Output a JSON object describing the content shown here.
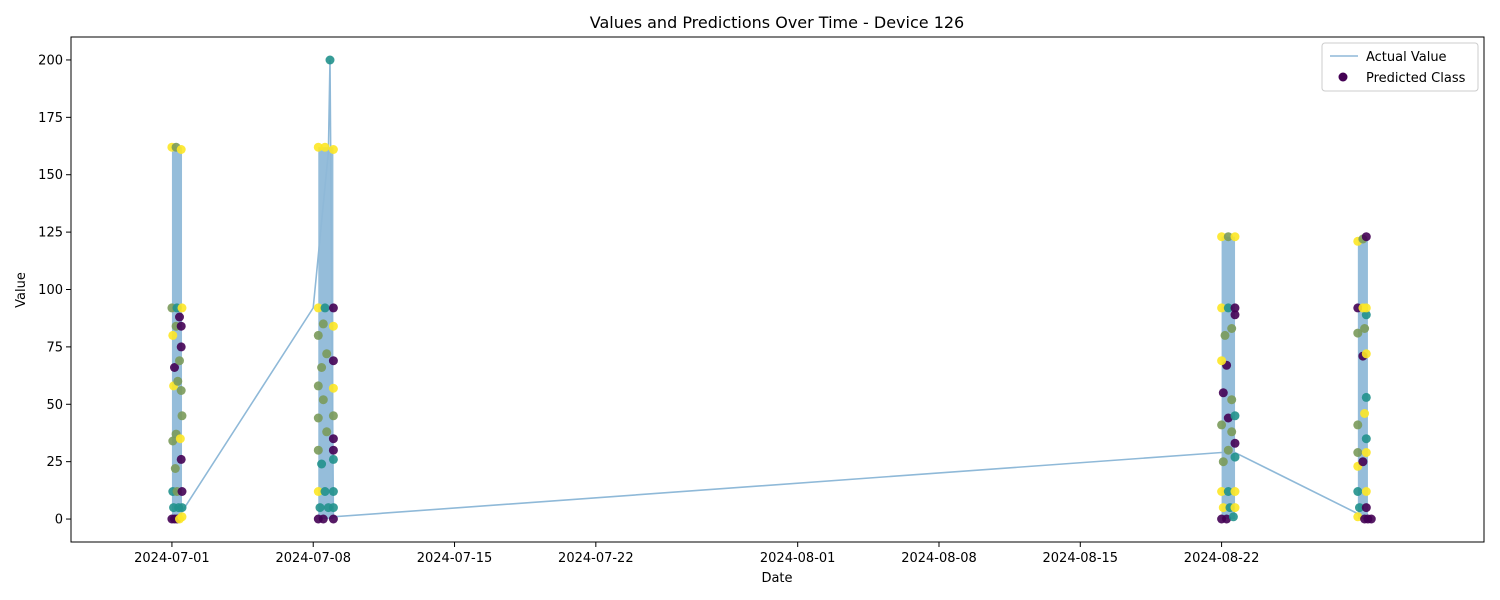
{
  "chart_data": {
    "type": "scatter",
    "title": "Values and Predictions Over Time - Device 126",
    "xlabel": "Date",
    "ylabel": "Value",
    "xlim": [
      "2024-06-26",
      "2024-09-04"
    ],
    "ylim": [
      -10,
      210
    ],
    "x_ticks": [
      "2024-07-01",
      "2024-07-08",
      "2024-07-15",
      "2024-07-22",
      "2024-08-01",
      "2024-08-08",
      "2024-08-15",
      "2024-08-22"
    ],
    "y_ticks": [
      0,
      25,
      50,
      75,
      100,
      125,
      150,
      175,
      200
    ],
    "grid": false,
    "legend_position": "top-right",
    "legend": [
      {
        "label": "Actual Value",
        "kind": "line",
        "color": "#8fb9d8"
      },
      {
        "label": "Predicted Class",
        "kind": "marker",
        "color": "#440154"
      }
    ],
    "class_colors": [
      "#440154",
      "#7a9a5a",
      "#21918c",
      "#fde725"
    ],
    "bands": [
      {
        "start": "2024-07-01",
        "end": "2024-07-01T12:00",
        "min": 0,
        "max": 162
      },
      {
        "start": "2024-07-08T06:00",
        "end": "2024-07-09",
        "min": 0,
        "max": 162
      },
      {
        "start": "2024-08-22",
        "end": "2024-08-22T16:00",
        "min": 0,
        "max": 123
      },
      {
        "start": "2024-08-28T18:00",
        "end": "2024-08-29T06:00",
        "min": 0,
        "max": 122
      }
    ],
    "series": [
      {
        "name": "Actual Value",
        "type": "line",
        "x": [
          "2024-07-01T08:00",
          "2024-07-08T00:00",
          "2024-07-08T18:00",
          "2024-07-08T20:00",
          "2024-07-09T00:00",
          "2024-08-22T00:00",
          "2024-08-22T16:00",
          "2024-08-28T20:00"
        ],
        "y": [
          1,
          92,
          160,
          200,
          1,
          29,
          29,
          2
        ]
      },
      {
        "name": "Predicted Class",
        "type": "scatter",
        "points": [
          {
            "x": "2024-07-01T00:00",
            "y": 0,
            "c": 0
          },
          {
            "x": "2024-07-01T03:00",
            "y": 0,
            "c": 0
          },
          {
            "x": "2024-07-01T06:00",
            "y": 0,
            "c": 0
          },
          {
            "x": "2024-07-01T09:00",
            "y": 0,
            "c": 3
          },
          {
            "x": "2024-07-01T12:00",
            "y": 1,
            "c": 3
          },
          {
            "x": "2024-07-01T02:00",
            "y": 5,
            "c": 2
          },
          {
            "x": "2024-07-01T08:00",
            "y": 5,
            "c": 2
          },
          {
            "x": "2024-07-01T12:00",
            "y": 5,
            "c": 2
          },
          {
            "x": "2024-07-01T01:00",
            "y": 12,
            "c": 2
          },
          {
            "x": "2024-07-01T06:00",
            "y": 12,
            "c": 1
          },
          {
            "x": "2024-07-01T12:00",
            "y": 12,
            "c": 0
          },
          {
            "x": "2024-07-01T11:00",
            "y": 26,
            "c": 0
          },
          {
            "x": "2024-07-01T01:00",
            "y": 34,
            "c": 1
          },
          {
            "x": "2024-07-01T05:00",
            "y": 37,
            "c": 1
          },
          {
            "x": "2024-07-01T10:00",
            "y": 35,
            "c": 3
          },
          {
            "x": "2024-07-01T04:00",
            "y": 22,
            "c": 1
          },
          {
            "x": "2024-07-01T12:00",
            "y": 45,
            "c": 1
          },
          {
            "x": "2024-07-01T02:00",
            "y": 58,
            "c": 3
          },
          {
            "x": "2024-07-01T07:00",
            "y": 60,
            "c": 1
          },
          {
            "x": "2024-07-01T11:00",
            "y": 56,
            "c": 1
          },
          {
            "x": "2024-07-01T03:00",
            "y": 66,
            "c": 0
          },
          {
            "x": "2024-07-01T09:00",
            "y": 69,
            "c": 1
          },
          {
            "x": "2024-07-01T11:00",
            "y": 75,
            "c": 0
          },
          {
            "x": "2024-07-01T01:00",
            "y": 80,
            "c": 3
          },
          {
            "x": "2024-07-01T05:00",
            "y": 84,
            "c": 1
          },
          {
            "x": "2024-07-01T11:00",
            "y": 84,
            "c": 0
          },
          {
            "x": "2024-07-01T09:00",
            "y": 88,
            "c": 0
          },
          {
            "x": "2024-07-01T00:00",
            "y": 92,
            "c": 1
          },
          {
            "x": "2024-07-01T06:00",
            "y": 92,
            "c": 2
          },
          {
            "x": "2024-07-01T12:00",
            "y": 92,
            "c": 3
          },
          {
            "x": "2024-07-01T00:00",
            "y": 162,
            "c": 3
          },
          {
            "x": "2024-07-01T05:00",
            "y": 162,
            "c": 1
          },
          {
            "x": "2024-07-01T11:00",
            "y": 161,
            "c": 3
          },
          {
            "x": "2024-07-08T06:00",
            "y": 0,
            "c": 0
          },
          {
            "x": "2024-07-08T12:00",
            "y": 0,
            "c": 0
          },
          {
            "x": "2024-07-09T00:00",
            "y": 0,
            "c": 0
          },
          {
            "x": "2024-07-08T08:00",
            "y": 5,
            "c": 2
          },
          {
            "x": "2024-07-08T18:00",
            "y": 5,
            "c": 2
          },
          {
            "x": "2024-07-09T00:00",
            "y": 5,
            "c": 2
          },
          {
            "x": "2024-07-08T06:00",
            "y": 12,
            "c": 3
          },
          {
            "x": "2024-07-08T14:00",
            "y": 12,
            "c": 2
          },
          {
            "x": "2024-07-09T00:00",
            "y": 12,
            "c": 2
          },
          {
            "x": "2024-07-08T10:00",
            "y": 24,
            "c": 2
          },
          {
            "x": "2024-07-09T00:00",
            "y": 26,
            "c": 2
          },
          {
            "x": "2024-07-08T06:00",
            "y": 30,
            "c": 1
          },
          {
            "x": "2024-07-09T00:00",
            "y": 30,
            "c": 0
          },
          {
            "x": "2024-07-09T00:00",
            "y": 35,
            "c": 0
          },
          {
            "x": "2024-07-08T16:00",
            "y": 38,
            "c": 1
          },
          {
            "x": "2024-07-08T06:00",
            "y": 44,
            "c": 1
          },
          {
            "x": "2024-07-09T00:00",
            "y": 45,
            "c": 1
          },
          {
            "x": "2024-07-08T12:00",
            "y": 52,
            "c": 1
          },
          {
            "x": "2024-07-08T06:00",
            "y": 58,
            "c": 1
          },
          {
            "x": "2024-07-09T00:00",
            "y": 57,
            "c": 3
          },
          {
            "x": "2024-07-08T10:00",
            "y": 66,
            "c": 1
          },
          {
            "x": "2024-07-09T00:00",
            "y": 69,
            "c": 0
          },
          {
            "x": "2024-07-08T16:00",
            "y": 72,
            "c": 1
          },
          {
            "x": "2024-07-08T06:00",
            "y": 80,
            "c": 1
          },
          {
            "x": "2024-07-08T12:00",
            "y": 85,
            "c": 1
          },
          {
            "x": "2024-07-09T00:00",
            "y": 84,
            "c": 3
          },
          {
            "x": "2024-07-08T06:00",
            "y": 92,
            "c": 3
          },
          {
            "x": "2024-07-08T14:00",
            "y": 92,
            "c": 2
          },
          {
            "x": "2024-07-09T00:00",
            "y": 92,
            "c": 0
          },
          {
            "x": "2024-07-08T06:00",
            "y": 162,
            "c": 3
          },
          {
            "x": "2024-07-08T14:00",
            "y": 162,
            "c": 3
          },
          {
            "x": "2024-07-09T00:00",
            "y": 161,
            "c": 3
          },
          {
            "x": "2024-07-08T20:00",
            "y": 200,
            "c": 2
          },
          {
            "x": "2024-08-22T00:00",
            "y": 0,
            "c": 0
          },
          {
            "x": "2024-08-22T06:00",
            "y": 0,
            "c": 0
          },
          {
            "x": "2024-08-22T14:00",
            "y": 1,
            "c": 2
          },
          {
            "x": "2024-08-22T02:00",
            "y": 5,
            "c": 3
          },
          {
            "x": "2024-08-22T10:00",
            "y": 5,
            "c": 2
          },
          {
            "x": "2024-08-22T16:00",
            "y": 5,
            "c": 3
          },
          {
            "x": "2024-08-22T00:00",
            "y": 12,
            "c": 3
          },
          {
            "x": "2024-08-22T08:00",
            "y": 12,
            "c": 2
          },
          {
            "x": "2024-08-22T16:00",
            "y": 12,
            "c": 3
          },
          {
            "x": "2024-08-22T02:00",
            "y": 25,
            "c": 1
          },
          {
            "x": "2024-08-22T16:00",
            "y": 27,
            "c": 2
          },
          {
            "x": "2024-08-22T08:00",
            "y": 30,
            "c": 1
          },
          {
            "x": "2024-08-22T16:00",
            "y": 33,
            "c": 0
          },
          {
            "x": "2024-08-22T12:00",
            "y": 38,
            "c": 1
          },
          {
            "x": "2024-08-22T00:00",
            "y": 41,
            "c": 1
          },
          {
            "x": "2024-08-22T08:00",
            "y": 44,
            "c": 0
          },
          {
            "x": "2024-08-22T16:00",
            "y": 45,
            "c": 2
          },
          {
            "x": "2024-08-22T12:00",
            "y": 52,
            "c": 1
          },
          {
            "x": "2024-08-22T02:00",
            "y": 55,
            "c": 0
          },
          {
            "x": "2024-08-22T06:00",
            "y": 67,
            "c": 0
          },
          {
            "x": "2024-08-22T00:00",
            "y": 69,
            "c": 3
          },
          {
            "x": "2024-08-22T04:00",
            "y": 80,
            "c": 1
          },
          {
            "x": "2024-08-22T12:00",
            "y": 83,
            "c": 1
          },
          {
            "x": "2024-08-22T16:00",
            "y": 89,
            "c": 0
          },
          {
            "x": "2024-08-22T00:00",
            "y": 92,
            "c": 3
          },
          {
            "x": "2024-08-22T08:00",
            "y": 92,
            "c": 2
          },
          {
            "x": "2024-08-22T16:00",
            "y": 92,
            "c": 0
          },
          {
            "x": "2024-08-22T00:00",
            "y": 123,
            "c": 3
          },
          {
            "x": "2024-08-22T08:00",
            "y": 123,
            "c": 1
          },
          {
            "x": "2024-08-22T16:00",
            "y": 123,
            "c": 3
          },
          {
            "x": "2024-08-28T18:00",
            "y": 1,
            "c": 3
          },
          {
            "x": "2024-08-29T02:00",
            "y": 0,
            "c": 0
          },
          {
            "x": "2024-08-29T06:00",
            "y": 0,
            "c": 0
          },
          {
            "x": "2024-08-29T10:00",
            "y": 0,
            "c": 0
          },
          {
            "x": "2024-08-28T20:00",
            "y": 5,
            "c": 2
          },
          {
            "x": "2024-08-29T04:00",
            "y": 5,
            "c": 0
          },
          {
            "x": "2024-08-28T18:00",
            "y": 12,
            "c": 2
          },
          {
            "x": "2024-08-29T04:00",
            "y": 12,
            "c": 3
          },
          {
            "x": "2024-08-28T18:00",
            "y": 23,
            "c": 3
          },
          {
            "x": "2024-08-29T00:00",
            "y": 25,
            "c": 0
          },
          {
            "x": "2024-08-28T18:00",
            "y": 29,
            "c": 1
          },
          {
            "x": "2024-08-29T04:00",
            "y": 29,
            "c": 3
          },
          {
            "x": "2024-08-29T04:00",
            "y": 35,
            "c": 2
          },
          {
            "x": "2024-08-28T18:00",
            "y": 41,
            "c": 1
          },
          {
            "x": "2024-08-29T02:00",
            "y": 46,
            "c": 3
          },
          {
            "x": "2024-08-29T04:00",
            "y": 53,
            "c": 2
          },
          {
            "x": "2024-08-29T00:00",
            "y": 71,
            "c": 0
          },
          {
            "x": "2024-08-29T04:00",
            "y": 72,
            "c": 3
          },
          {
            "x": "2024-08-28T18:00",
            "y": 81,
            "c": 1
          },
          {
            "x": "2024-08-29T02:00",
            "y": 83,
            "c": 1
          },
          {
            "x": "2024-08-29T04:00",
            "y": 89,
            "c": 2
          },
          {
            "x": "2024-08-28T18:00",
            "y": 92,
            "c": 0
          },
          {
            "x": "2024-08-29T00:00",
            "y": 92,
            "c": 3
          },
          {
            "x": "2024-08-29T04:00",
            "y": 92,
            "c": 3
          },
          {
            "x": "2024-08-28T18:00",
            "y": 121,
            "c": 3
          },
          {
            "x": "2024-08-29T00:00",
            "y": 122,
            "c": 1
          },
          {
            "x": "2024-08-29T04:00",
            "y": 123,
            "c": 0
          }
        ]
      }
    ]
  }
}
